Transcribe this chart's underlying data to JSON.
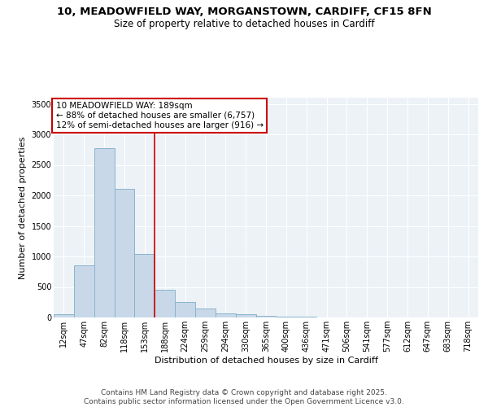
{
  "title_line1": "10, MEADOWFIELD WAY, MORGANSTOWN, CARDIFF, CF15 8FN",
  "title_line2": "Size of property relative to detached houses in Cardiff",
  "xlabel": "Distribution of detached houses by size in Cardiff",
  "ylabel": "Number of detached properties",
  "categories": [
    "12sqm",
    "47sqm",
    "82sqm",
    "118sqm",
    "153sqm",
    "188sqm",
    "224sqm",
    "259sqm",
    "294sqm",
    "330sqm",
    "365sqm",
    "400sqm",
    "436sqm",
    "471sqm",
    "506sqm",
    "541sqm",
    "577sqm",
    "612sqm",
    "647sqm",
    "683sqm",
    "718sqm"
  ],
  "values": [
    55,
    850,
    2780,
    2105,
    1040,
    460,
    250,
    150,
    65,
    55,
    30,
    15,
    10,
    5,
    2,
    1,
    1,
    0,
    0,
    0,
    0
  ],
  "bar_color": "#c8d8e8",
  "bar_edge_color": "#8ab4cc",
  "vline_idx": 5,
  "vline_color": "#cc0000",
  "annotation_line1": "10 MEADOWFIELD WAY: 189sqm",
  "annotation_line2": "← 88% of detached houses are smaller (6,757)",
  "annotation_line3": "12% of semi-detached houses are larger (916) →",
  "annotation_box_color": "#cc0000",
  "ylim": [
    0,
    3600
  ],
  "yticks": [
    0,
    500,
    1000,
    1500,
    2000,
    2500,
    3000,
    3500
  ],
  "background_color": "#edf2f7",
  "grid_color": "#ffffff",
  "footer_text": "Contains HM Land Registry data © Crown copyright and database right 2025.\nContains public sector information licensed under the Open Government Licence v3.0.",
  "title_fontsize": 9.5,
  "subtitle_fontsize": 8.5,
  "axis_label_fontsize": 8,
  "tick_fontsize": 7,
  "annotation_fontsize": 7.5,
  "footer_fontsize": 6.5
}
